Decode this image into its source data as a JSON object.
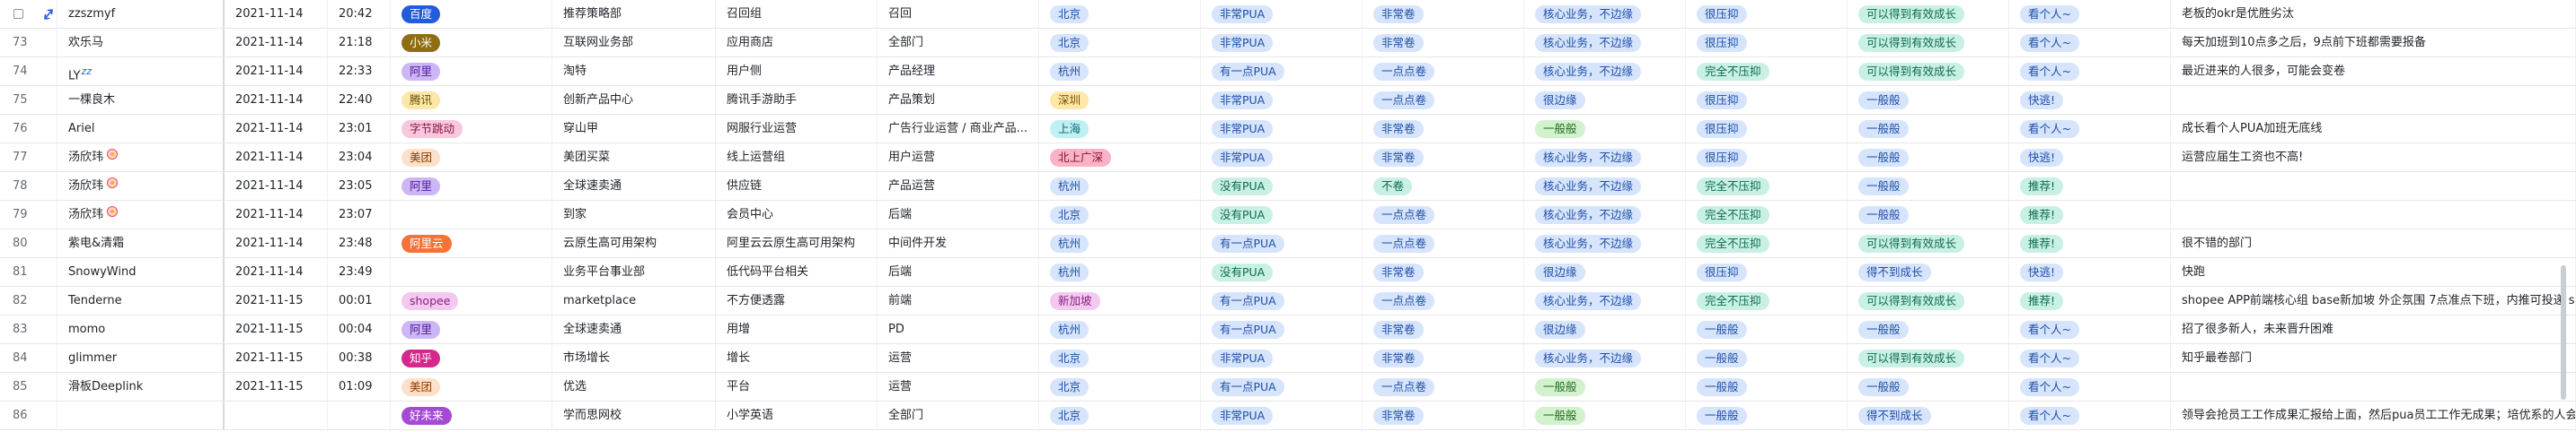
{
  "colors": {
    "grid_line": "#e4e6e9",
    "text": "#1f2329",
    "row_number": "#646a73"
  },
  "rows": [
    {
      "num": "",
      "name": "zzszmyf",
      "name_suffix": "",
      "date": "2021-11-14",
      "time": "20:42",
      "company": "百度",
      "company_color": "t-blue-solid",
      "dept": "推荐策略部",
      "group": "召回组",
      "role": "召回",
      "city": "北京",
      "city_color": "t-lightblue",
      "pua": "非常PUA",
      "pua_color": "t-lightblue",
      "juan": "非常卷",
      "juan_color": "t-lightblue",
      "business": "核心业务，不边缘",
      "business_color": "t-lightblue",
      "pressure": "很压抑",
      "pressure_color": "t-lightblue",
      "growth": "可以得到有效成长",
      "growth_color": "t-teal",
      "recommend": "看个人~",
      "recommend_color": "t-lightblue",
      "comment": "老板的okr是优胜劣汰"
    },
    {
      "num": "73",
      "name": "欢乐马",
      "name_suffix": "",
      "date": "2021-11-14",
      "time": "21:18",
      "company": "小米",
      "company_color": "t-olive",
      "dept": "互联网业务部",
      "group": "应用商店",
      "role": "全部门",
      "city": "北京",
      "city_color": "t-lightblue",
      "pua": "非常PUA",
      "pua_color": "t-lightblue",
      "juan": "非常卷",
      "juan_color": "t-lightblue",
      "business": "核心业务，不边缘",
      "business_color": "t-lightblue",
      "pressure": "很压抑",
      "pressure_color": "t-lightblue",
      "growth": "可以得到有效成长",
      "growth_color": "t-teal",
      "recommend": "看个人~",
      "recommend_color": "t-lightblue",
      "comment": "每天加班到10点多之后，9点前下班都需要报备"
    },
    {
      "num": "74",
      "name": "LY",
      "name_suffix": "zz",
      "date": "2021-11-14",
      "time": "22:33",
      "company": "阿里",
      "company_color": "t-purple",
      "dept": "淘特",
      "group": "用户侧",
      "role": "产品经理",
      "city": "杭州",
      "city_color": "t-lightblue",
      "pua": "有一点PUA",
      "pua_color": "t-lightblue",
      "juan": "一点点卷",
      "juan_color": "t-lightblue",
      "business": "核心业务，不边缘",
      "business_color": "t-lightblue",
      "pressure": "完全不压抑",
      "pressure_color": "t-teal",
      "growth": "可以得到有效成长",
      "growth_color": "t-teal",
      "recommend": "看个人~",
      "recommend_color": "t-lightblue",
      "comment": "最近进来的人很多，可能会变卷"
    },
    {
      "num": "75",
      "name": "一棵良木",
      "name_suffix": "",
      "date": "2021-11-14",
      "time": "22:40",
      "company": "腾讯",
      "company_color": "t-yellow",
      "dept": "创新产品中心",
      "group": "腾讯手游助手",
      "role": "产品策划",
      "city": "深圳",
      "city_color": "t-amber",
      "pua": "非常PUA",
      "pua_color": "t-lightblue",
      "juan": "一点点卷",
      "juan_color": "t-lightblue",
      "business": "很边缘",
      "business_color": "t-lightblue",
      "pressure": "很压抑",
      "pressure_color": "t-lightblue",
      "growth": "一般般",
      "growth_color": "t-lightblue",
      "recommend": "快逃!",
      "recommend_color": "t-lightblue",
      "comment": ""
    },
    {
      "num": "76",
      "name": "Ariel",
      "name_suffix": "",
      "date": "2021-11-14",
      "time": "23:01",
      "company": "字节跳动",
      "company_color": "t-pink",
      "dept": "穿山甲",
      "group": "网服行业运营",
      "role": "广告行业运营 / 商业产品...",
      "city": "上海",
      "city_color": "t-cyan",
      "pua": "非常PUA",
      "pua_color": "t-lightblue",
      "juan": "非常卷",
      "juan_color": "t-lightblue",
      "business": "一般般",
      "business_color": "t-green",
      "pressure": "很压抑",
      "pressure_color": "t-lightblue",
      "growth": "一般般",
      "growth_color": "t-lightblue",
      "recommend": "看个人~",
      "recommend_color": "t-lightblue",
      "comment": "成长看个人PUA加班无底线"
    },
    {
      "num": "77",
      "name": "汤欣玮",
      "name_suffix": "flower",
      "date": "2021-11-14",
      "time": "23:04",
      "company": "美团",
      "company_color": "t-peach",
      "dept": "美团买菜",
      "group": "线上运营组",
      "role": "用户运营",
      "city": "北上广深",
      "city_color": "t-rose",
      "pua": "非常PUA",
      "pua_color": "t-lightblue",
      "juan": "非常卷",
      "juan_color": "t-lightblue",
      "business": "核心业务，不边缘",
      "business_color": "t-lightblue",
      "pressure": "很压抑",
      "pressure_color": "t-lightblue",
      "growth": "一般般",
      "growth_color": "t-lightblue",
      "recommend": "快逃!",
      "recommend_color": "t-lightblue",
      "comment": "运营应届生工资也不高!"
    },
    {
      "num": "78",
      "name": "汤欣玮",
      "name_suffix": "flower",
      "date": "2021-11-14",
      "time": "23:05",
      "company": "阿里",
      "company_color": "t-purple",
      "dept": "全球速卖通",
      "group": "供应链",
      "role": "产品运营",
      "city": "杭州",
      "city_color": "t-lightblue",
      "pua": "没有PUA",
      "pua_color": "t-teal",
      "juan": "不卷",
      "juan_color": "t-teal",
      "business": "核心业务，不边缘",
      "business_color": "t-lightblue",
      "pressure": "完全不压抑",
      "pressure_color": "t-teal",
      "growth": "一般般",
      "growth_color": "t-lightblue",
      "recommend": "推荐!",
      "recommend_color": "t-teal",
      "comment": ""
    },
    {
      "num": "79",
      "name": "汤欣玮",
      "name_suffix": "flower",
      "date": "2021-11-14",
      "time": "23:07",
      "company": "",
      "company_color": "",
      "dept": "到家",
      "group": "会员中心",
      "role": "后端",
      "city": "北京",
      "city_color": "t-lightblue",
      "pua": "没有PUA",
      "pua_color": "t-teal",
      "juan": "一点点卷",
      "juan_color": "t-lightblue",
      "business": "核心业务，不边缘",
      "business_color": "t-lightblue",
      "pressure": "完全不压抑",
      "pressure_color": "t-teal",
      "growth": "一般般",
      "growth_color": "t-lightblue",
      "recommend": "推荐!",
      "recommend_color": "t-teal",
      "comment": ""
    },
    {
      "num": "80",
      "name": "紫电&清霜",
      "name_suffix": "",
      "date": "2021-11-14",
      "time": "23:48",
      "company": "阿里云",
      "company_color": "t-orange",
      "dept": "云原生高可用架构",
      "group": "阿里云云原生高可用架构",
      "role": "中间件开发",
      "city": "杭州",
      "city_color": "t-lightblue",
      "pua": "有一点PUA",
      "pua_color": "t-lightblue",
      "juan": "一点点卷",
      "juan_color": "t-lightblue",
      "business": "核心业务，不边缘",
      "business_color": "t-lightblue",
      "pressure": "完全不压抑",
      "pressure_color": "t-teal",
      "growth": "可以得到有效成长",
      "growth_color": "t-teal",
      "recommend": "推荐!",
      "recommend_color": "t-teal",
      "comment": "很不错的部门"
    },
    {
      "num": "81",
      "name": "SnowyWind",
      "name_suffix": "",
      "date": "2021-11-14",
      "time": "23:49",
      "company": "",
      "company_color": "",
      "dept": "业务平台事业部",
      "group": "低代码平台相关",
      "role": "后端",
      "city": "杭州",
      "city_color": "t-lightblue",
      "pua": "没有PUA",
      "pua_color": "t-teal",
      "juan": "非常卷",
      "juan_color": "t-lightblue",
      "business": "很边缘",
      "business_color": "t-lightblue",
      "pressure": "很压抑",
      "pressure_color": "t-lightblue",
      "growth": "得不到成长",
      "growth_color": "t-lightblue",
      "recommend": "快逃!",
      "recommend_color": "t-lightblue",
      "comment": "快跑"
    },
    {
      "num": "82",
      "name": "Tenderne",
      "name_suffix": "",
      "date": "2021-11-15",
      "time": "00:01",
      "company": "shopee",
      "company_color": "t-fuchsia",
      "dept": "marketplace",
      "group": "不方便透露",
      "role": "前端",
      "city": "新加坡",
      "city_color": "t-fuchsia",
      "pua": "有一点PUA",
      "pua_color": "t-lightblue",
      "juan": "一点点卷",
      "juan_color": "t-lightblue",
      "business": "核心业务，不边缘",
      "business_color": "t-lightblue",
      "pressure": "完全不压抑",
      "pressure_color": "t-teal",
      "growth": "可以得到有效成长",
      "growth_color": "t-teal",
      "recommend": "推荐!",
      "recommend_color": "t-teal",
      "comment": "shopee APP前端核心组 base新加坡 外企氛围 7点准点下班，内推可投递 sui"
    },
    {
      "num": "83",
      "name": "momo",
      "name_suffix": "",
      "date": "2021-11-15",
      "time": "00:04",
      "company": "阿里",
      "company_color": "t-purple",
      "dept": "全球速卖通",
      "group": "用增",
      "role": "PD",
      "city": "杭州",
      "city_color": "t-lightblue",
      "pua": "有一点PUA",
      "pua_color": "t-lightblue",
      "juan": "非常卷",
      "juan_color": "t-lightblue",
      "business": "很边缘",
      "business_color": "t-lightblue",
      "pressure": "一般般",
      "pressure_color": "t-lightblue",
      "growth": "一般般",
      "growth_color": "t-lightblue",
      "recommend": "看个人~",
      "recommend_color": "t-lightblue",
      "comment": "招了很多新人，未来晋升困难"
    },
    {
      "num": "84",
      "name": "glimmer",
      "name_suffix": "",
      "date": "2021-11-15",
      "time": "00:38",
      "company": "知乎",
      "company_color": "t-magenta",
      "dept": "市场增长",
      "group": "增长",
      "role": "运营",
      "city": "北京",
      "city_color": "t-lightblue",
      "pua": "非常PUA",
      "pua_color": "t-lightblue",
      "juan": "非常卷",
      "juan_color": "t-lightblue",
      "business": "核心业务，不边缘",
      "business_color": "t-lightblue",
      "pressure": "一般般",
      "pressure_color": "t-lightblue",
      "growth": "可以得到有效成长",
      "growth_color": "t-teal",
      "recommend": "看个人~",
      "recommend_color": "t-lightblue",
      "comment": "知乎最卷部门"
    },
    {
      "num": "85",
      "name": "滑板Deeplink",
      "name_suffix": "",
      "date": "2021-11-15",
      "time": "01:09",
      "company": "美团",
      "company_color": "t-peach",
      "dept": "优选",
      "group": "平台",
      "role": "运营",
      "city": "北京",
      "city_color": "t-lightblue",
      "pua": "有一点PUA",
      "pua_color": "t-lightblue",
      "juan": "一点点卷",
      "juan_color": "t-lightblue",
      "business": "一般般",
      "business_color": "t-green",
      "pressure": "一般般",
      "pressure_color": "t-lightblue",
      "growth": "一般般",
      "growth_color": "t-lightblue",
      "recommend": "看个人~",
      "recommend_color": "t-lightblue",
      "comment": ""
    },
    {
      "num": "86",
      "name": "",
      "name_suffix": "",
      "date": "",
      "time": "",
      "company": "好未来",
      "company_color": "t-violet",
      "dept": "学而思网校",
      "group": "小学英语",
      "role": "全部门",
      "city": "北京",
      "city_color": "t-lightblue",
      "pua": "非常PUA",
      "pua_color": "t-lightblue",
      "juan": "非常卷",
      "juan_color": "t-lightblue",
      "business": "一般般",
      "business_color": "t-green",
      "pressure": "一般般",
      "pressure_color": "t-lightblue",
      "growth": "得不到成长",
      "growth_color": "t-lightblue",
      "recommend": "看个人~",
      "recommend_color": "t-lightblue",
      "comment": "领导会抢员工工作成果汇报给上面，然后pua员工工作无成果；培优系的人会"
    }
  ]
}
